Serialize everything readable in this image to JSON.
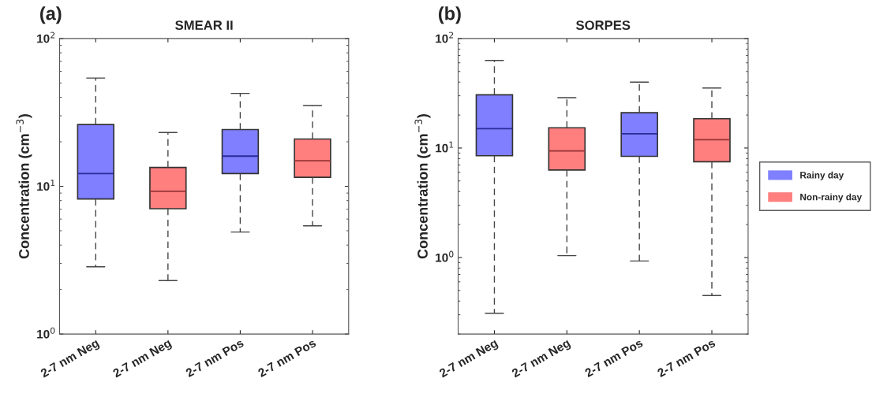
{
  "chart_data": [
    {
      "type": "box",
      "title": "SMEAR II",
      "ylabel": "Concentration (cm$^{−3}$)",
      "annotations": [
        "(a)"
      ],
      "categories": [
        "2-7 nm Neg",
        "2-7 nm Neg",
        "2-7 nm Pos",
        "2-7 nm Pos"
      ],
      "log": "y",
      "ylim": [
        1,
        100
      ],
      "yticks": [
        {
          "value": 1,
          "label": "10$^{0}$"
        },
        {
          "value": 10,
          "label": "10$^{1}$"
        },
        {
          "value": 100,
          "label": "10$^{2}$"
        }
      ],
      "grid": false,
      "legend": false,
      "series": [
        {
          "color": "#7f7fff",
          "boxes": [
            {
              "low": 2.85,
              "q1": 8.2,
              "median": 12.2,
              "q3": 26.2,
              "high": 54
            },
            null,
            {
              "low": 4.9,
              "q1": 12.2,
              "median": 16.0,
              "q3": 24.2,
              "high": 42.5
            },
            null
          ]
        },
        {
          "color": "#ff7f7f",
          "boxes": [
            null,
            {
              "low": 2.3,
              "q1": 7.05,
              "median": 9.25,
              "q3": 13.4,
              "high": 23.1
            },
            null,
            {
              "low": 5.4,
              "q1": 11.5,
              "median": 14.9,
              "q3": 20.9,
              "high": 35.2
            }
          ]
        }
      ]
    },
    {
      "type": "box",
      "title": "SORPES",
      "ylabel": "Concentration (cm$^{−3}$)",
      "annotations": [
        "(b)"
      ],
      "categories": [
        "2-7 nm Neg",
        "2-7 nm Neg",
        "2-7 nm Pos",
        "2-7 nm Pos"
      ],
      "log": "y",
      "ylim": [
        0.2,
        100
      ],
      "yticks": [
        {
          "value": 1,
          "label": "10$^{0}$"
        },
        {
          "value": 10,
          "label": "10$^{1}$"
        },
        {
          "value": 100,
          "label": "10$^{2}$"
        }
      ],
      "grid": false,
      "legend": "right",
      "series": [
        {
          "name": "Rainy day",
          "color": "#7f7fff",
          "boxes": [
            {
              "low": 0.31,
              "q1": 8.5,
              "median": 15.0,
              "q3": 30.6,
              "high": 63
            },
            null,
            {
              "low": 0.93,
              "q1": 8.4,
              "median": 13.5,
              "q3": 21.0,
              "high": 40
            },
            null
          ]
        },
        {
          "name": "Non-rainy day",
          "color": "#ff7f7f",
          "boxes": [
            null,
            {
              "low": 1.04,
              "q1": 6.3,
              "median": 9.4,
              "q3": 15.3,
              "high": 28.8
            },
            null,
            {
              "low": 0.45,
              "q1": 7.5,
              "median": 11.9,
              "q3": 18.5,
              "high": 35.3
            }
          ]
        }
      ]
    }
  ]
}
